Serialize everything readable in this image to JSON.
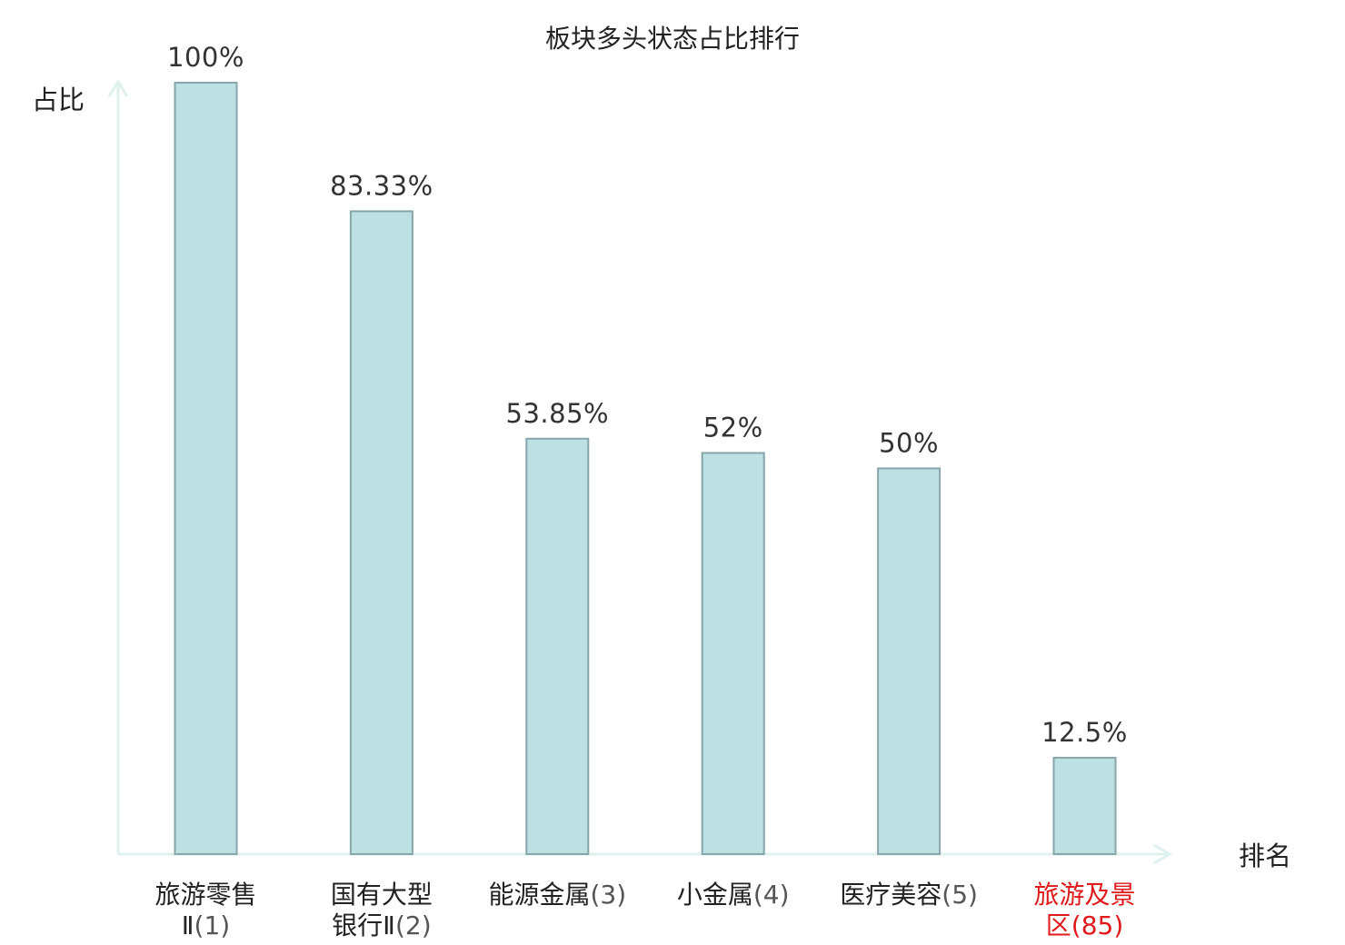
{
  "chart_data": {
    "type": "bar",
    "title": "板块多头状态占比排行",
    "ylabel": "占比",
    "xlabel": "排名",
    "ylim": [
      0,
      100
    ],
    "grid": false,
    "categories": [
      {
        "name_lines": [
          "旅游零售",
          "Ⅱ"
        ],
        "rank": "(1)",
        "highlight": false
      },
      {
        "name_lines": [
          "国有大型",
          "银行Ⅱ"
        ],
        "rank": "(2)",
        "highlight": false
      },
      {
        "name_lines": [
          "能源金属"
        ],
        "rank": "(3)",
        "highlight": false
      },
      {
        "name_lines": [
          "小金属"
        ],
        "rank": "(4)",
        "highlight": false
      },
      {
        "name_lines": [
          "医疗美容"
        ],
        "rank": "(5)",
        "highlight": false
      },
      {
        "name_lines": [
          "旅游及景",
          "区"
        ],
        "rank": "(85)",
        "highlight": true
      }
    ],
    "values": [
      100,
      83.33,
      53.85,
      52,
      50,
      12.5
    ],
    "value_labels": [
      "100%",
      "83.33%",
      "53.85%",
      "52%",
      "50%",
      "12.5%"
    ],
    "colors": {
      "bar_fill": "#bde0e3",
      "bar_stroke": "#86a6aa",
      "axis": "#dff1ef",
      "highlight_text": "#e0191b"
    }
  }
}
